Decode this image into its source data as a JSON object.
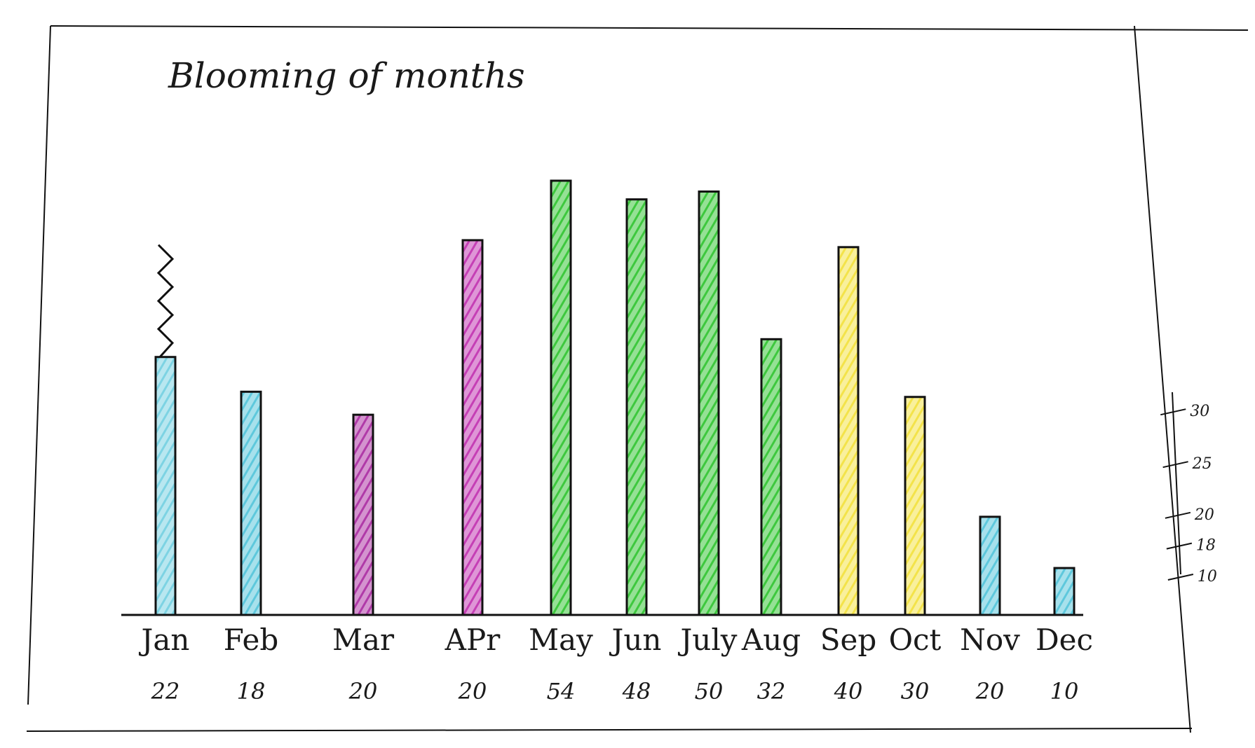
{
  "chart_data": {
    "type": "bar",
    "title": "Blooming of months",
    "xlabel": "",
    "ylabel": "",
    "categories": [
      "Jan",
      "Feb",
      "Mar",
      "APr",
      "May",
      "Jun",
      "July",
      "Aug",
      "Sep",
      "Oct",
      "Nov",
      "Dec"
    ],
    "values": [
      22,
      18,
      20,
      20,
      54,
      48,
      50,
      32,
      40,
      30,
      20,
      10
    ],
    "value_labels": [
      "22",
      "18",
      "20",
      "20",
      "54",
      "48",
      "50",
      "32",
      "40",
      "30",
      "20",
      "10"
    ],
    "bar_colors": [
      "#7dd3e3",
      "#5ec8dc",
      "#b03aa8",
      "#c53fb5",
      "#3ec83e",
      "#3ec83e",
      "#3ec83e",
      "#3ec83e",
      "#f3e34a",
      "#f3e34a",
      "#5ec8dc",
      "#5ec8dc"
    ],
    "bar_heights_drawn": [
      0.594,
      0.514,
      0.461,
      0.863,
      1.0,
      0.957,
      0.975,
      0.635,
      0.847,
      0.502,
      0.226,
      0.108
    ],
    "ytick_labels": [
      "30",
      "25",
      "20",
      "18",
      "10"
    ],
    "ytick_scale_fraction": [
      0.483,
      0.358,
      0.237,
      0.164,
      0.09
    ],
    "grid": false,
    "legend": "none"
  }
}
